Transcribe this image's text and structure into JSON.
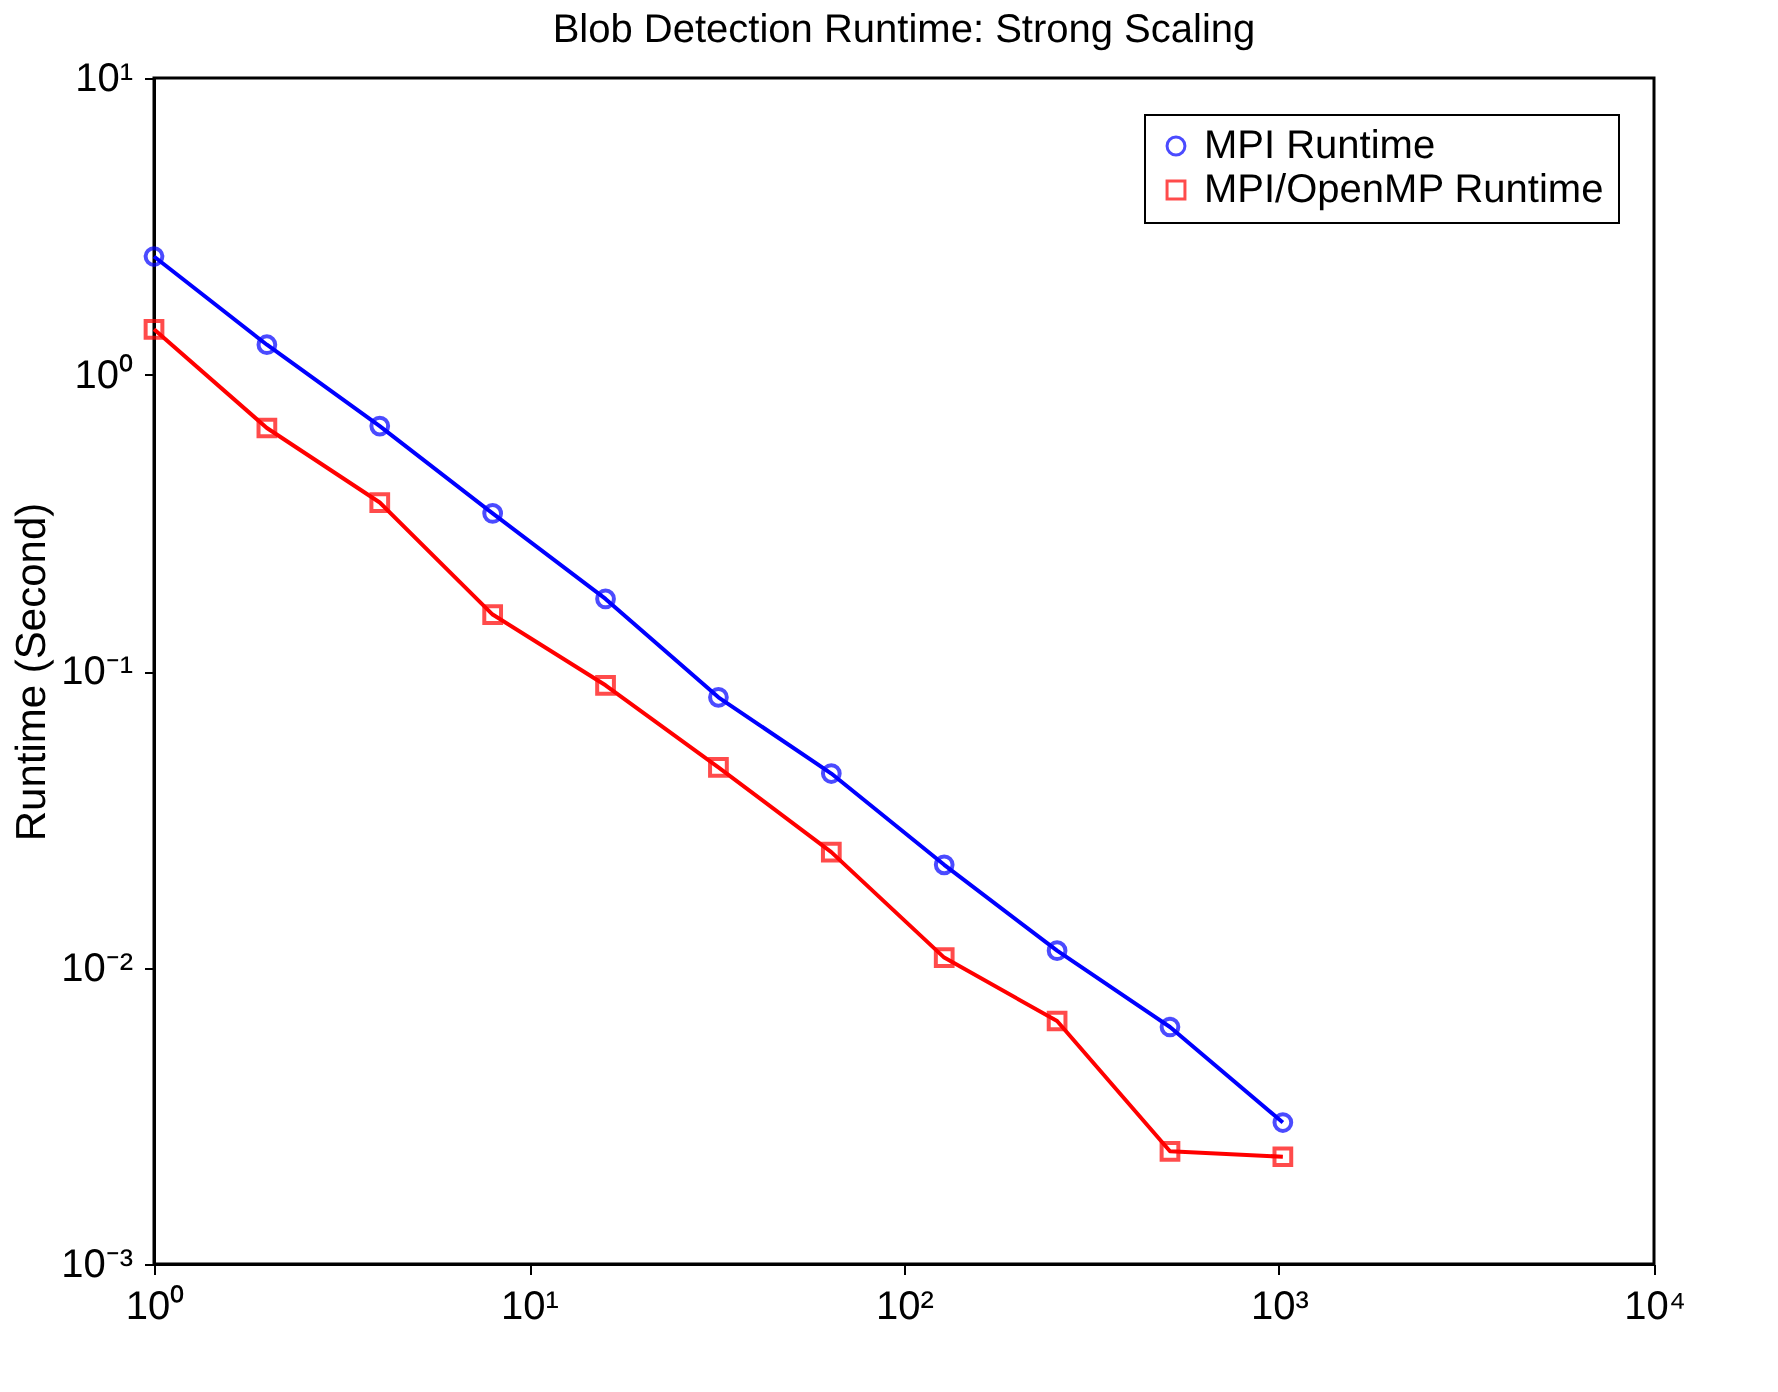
{
  "chart_data": {
    "type": "line",
    "title": "Blob Detection Runtime: Strong Scaling",
    "ylabel": "Runtime (Second)",
    "x": [
      1,
      2,
      4,
      8,
      16,
      32,
      64,
      128,
      256,
      512,
      1024
    ],
    "series": [
      {
        "name": "MPI Runtime",
        "color": "#0000ff",
        "marker": "circle",
        "values": [
          2.5,
          1.26,
          0.67,
          0.34,
          0.175,
          0.0815,
          0.0451,
          0.0222,
          0.0114,
          0.0063,
          0.003
        ]
      },
      {
        "name": "MPI/OpenMP Runtime",
        "color": "#ff0000",
        "marker": "square",
        "values": [
          1.42,
          0.66,
          0.37,
          0.155,
          0.0895,
          0.0473,
          0.0245,
          0.0108,
          0.0066,
          0.0024,
          0.0023
        ]
      }
    ],
    "log": "xy",
    "xlim": [
      1,
      10000
    ],
    "ylim": [
      0.001,
      10
    ],
    "xticks": [
      {
        "value": 1,
        "label": "10⁰"
      },
      {
        "value": 10,
        "label": "10¹"
      },
      {
        "value": 100,
        "label": "10²"
      },
      {
        "value": 1000,
        "label": "10³"
      },
      {
        "value": 10000,
        "label": "10⁴"
      }
    ],
    "yticks": [
      {
        "value": 0.001,
        "label": "10⁻³"
      },
      {
        "value": 0.01,
        "label": "10⁻²"
      },
      {
        "value": 0.1,
        "label": "10⁻¹"
      },
      {
        "value": 1,
        "label": "10⁰"
      },
      {
        "value": 10,
        "label": "10¹"
      }
    ],
    "grid": false,
    "legend": "top right",
    "line_style": "solid"
  }
}
